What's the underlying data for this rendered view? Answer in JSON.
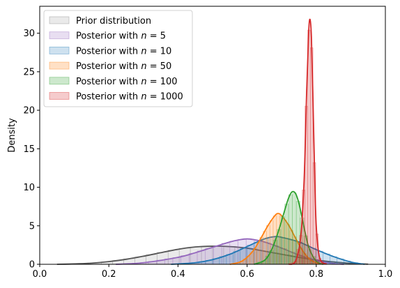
{
  "chart_data": {
    "type": "area",
    "title": "",
    "xlabel": "",
    "ylabel": "Density",
    "xlim": [
      0.0,
      1.0
    ],
    "ylim": [
      0,
      33.5
    ],
    "xticks": [
      "0.0",
      "0.2",
      "0.4",
      "0.6",
      "0.8",
      "1.0"
    ],
    "yticks": [
      "0",
      "5",
      "10",
      "15",
      "20",
      "25",
      "30"
    ],
    "grid": false,
    "legend_position": "top-left",
    "series": [
      {
        "name": "Prior distribution",
        "n_label": "",
        "color": "#7f7f7f",
        "line_color": "#555555",
        "x": [
          0.05,
          0.1,
          0.15,
          0.2,
          0.25,
          0.3,
          0.35,
          0.4,
          0.45,
          0.5,
          0.55,
          0.6,
          0.65,
          0.7,
          0.75,
          0.8,
          0.85,
          0.9,
          0.95
        ],
        "y": [
          0.0,
          0.05,
          0.15,
          0.35,
          0.65,
          1.05,
          1.5,
          1.95,
          2.25,
          2.35,
          2.3,
          2.1,
          1.7,
          1.3,
          0.9,
          0.55,
          0.3,
          0.12,
          0.02
        ]
      },
      {
        "name": "Posterior with $n = 5$",
        "n_label": "5",
        "color": "#9467bd",
        "line_color": "#9467bd",
        "x": [
          0.22,
          0.3,
          0.4,
          0.45,
          0.5,
          0.55,
          0.58,
          0.6,
          0.62,
          0.65,
          0.7,
          0.75,
          0.8,
          0.85,
          0.88
        ],
        "y": [
          0.0,
          0.2,
          0.9,
          1.5,
          2.2,
          2.9,
          3.2,
          3.3,
          3.2,
          2.9,
          2.1,
          1.2,
          0.5,
          0.1,
          0.0
        ]
      },
      {
        "name": "Posterior with $n = 10$",
        "n_label": "10",
        "color": "#1f77b4",
        "line_color": "#1f77b4",
        "x": [
          0.38,
          0.45,
          0.5,
          0.55,
          0.6,
          0.65,
          0.68,
          0.7,
          0.75,
          0.8,
          0.85,
          0.9,
          0.94
        ],
        "y": [
          0.0,
          0.2,
          0.6,
          1.3,
          2.3,
          3.3,
          3.6,
          3.5,
          2.9,
          1.9,
          1.0,
          0.3,
          0.0
        ]
      },
      {
        "name": "Posterior with $n = 50$",
        "n_label": "50",
        "color": "#ff7f0e",
        "line_color": "#ff7f0e",
        "x": [
          0.55,
          0.58,
          0.6,
          0.62,
          0.64,
          0.66,
          0.68,
          0.69,
          0.7,
          0.72,
          0.74,
          0.76,
          0.78,
          0.8,
          0.82
        ],
        "y": [
          0.0,
          0.3,
          0.9,
          1.9,
          3.4,
          5.0,
          6.3,
          6.6,
          6.3,
          5.1,
          3.4,
          1.8,
          0.7,
          0.2,
          0.0
        ]
      },
      {
        "name": "Posterior with $n = 100$",
        "n_label": "100",
        "color": "#2ca02c",
        "line_color": "#2ca02c",
        "x": [
          0.62,
          0.65,
          0.67,
          0.69,
          0.71,
          0.72,
          0.73,
          0.74,
          0.75,
          0.76,
          0.77,
          0.78,
          0.8,
          0.82
        ],
        "y": [
          0.0,
          0.5,
          1.8,
          4.2,
          7.2,
          8.6,
          9.4,
          9.2,
          7.9,
          5.8,
          3.7,
          2.0,
          0.4,
          0.0
        ]
      },
      {
        "name": "Posterior with $n = 1000$",
        "n_label": "1000",
        "color": "#d62728",
        "line_color": "#d62728",
        "x": [
          0.72,
          0.74,
          0.755,
          0.765,
          0.772,
          0.778,
          0.782,
          0.786,
          0.79,
          0.795,
          0.8,
          0.81,
          0.83
        ],
        "y": [
          0.0,
          0.4,
          3.5,
          11.0,
          22.0,
          30.0,
          31.8,
          29.5,
          22.5,
          12.5,
          5.0,
          0.8,
          0.0
        ]
      }
    ]
  }
}
